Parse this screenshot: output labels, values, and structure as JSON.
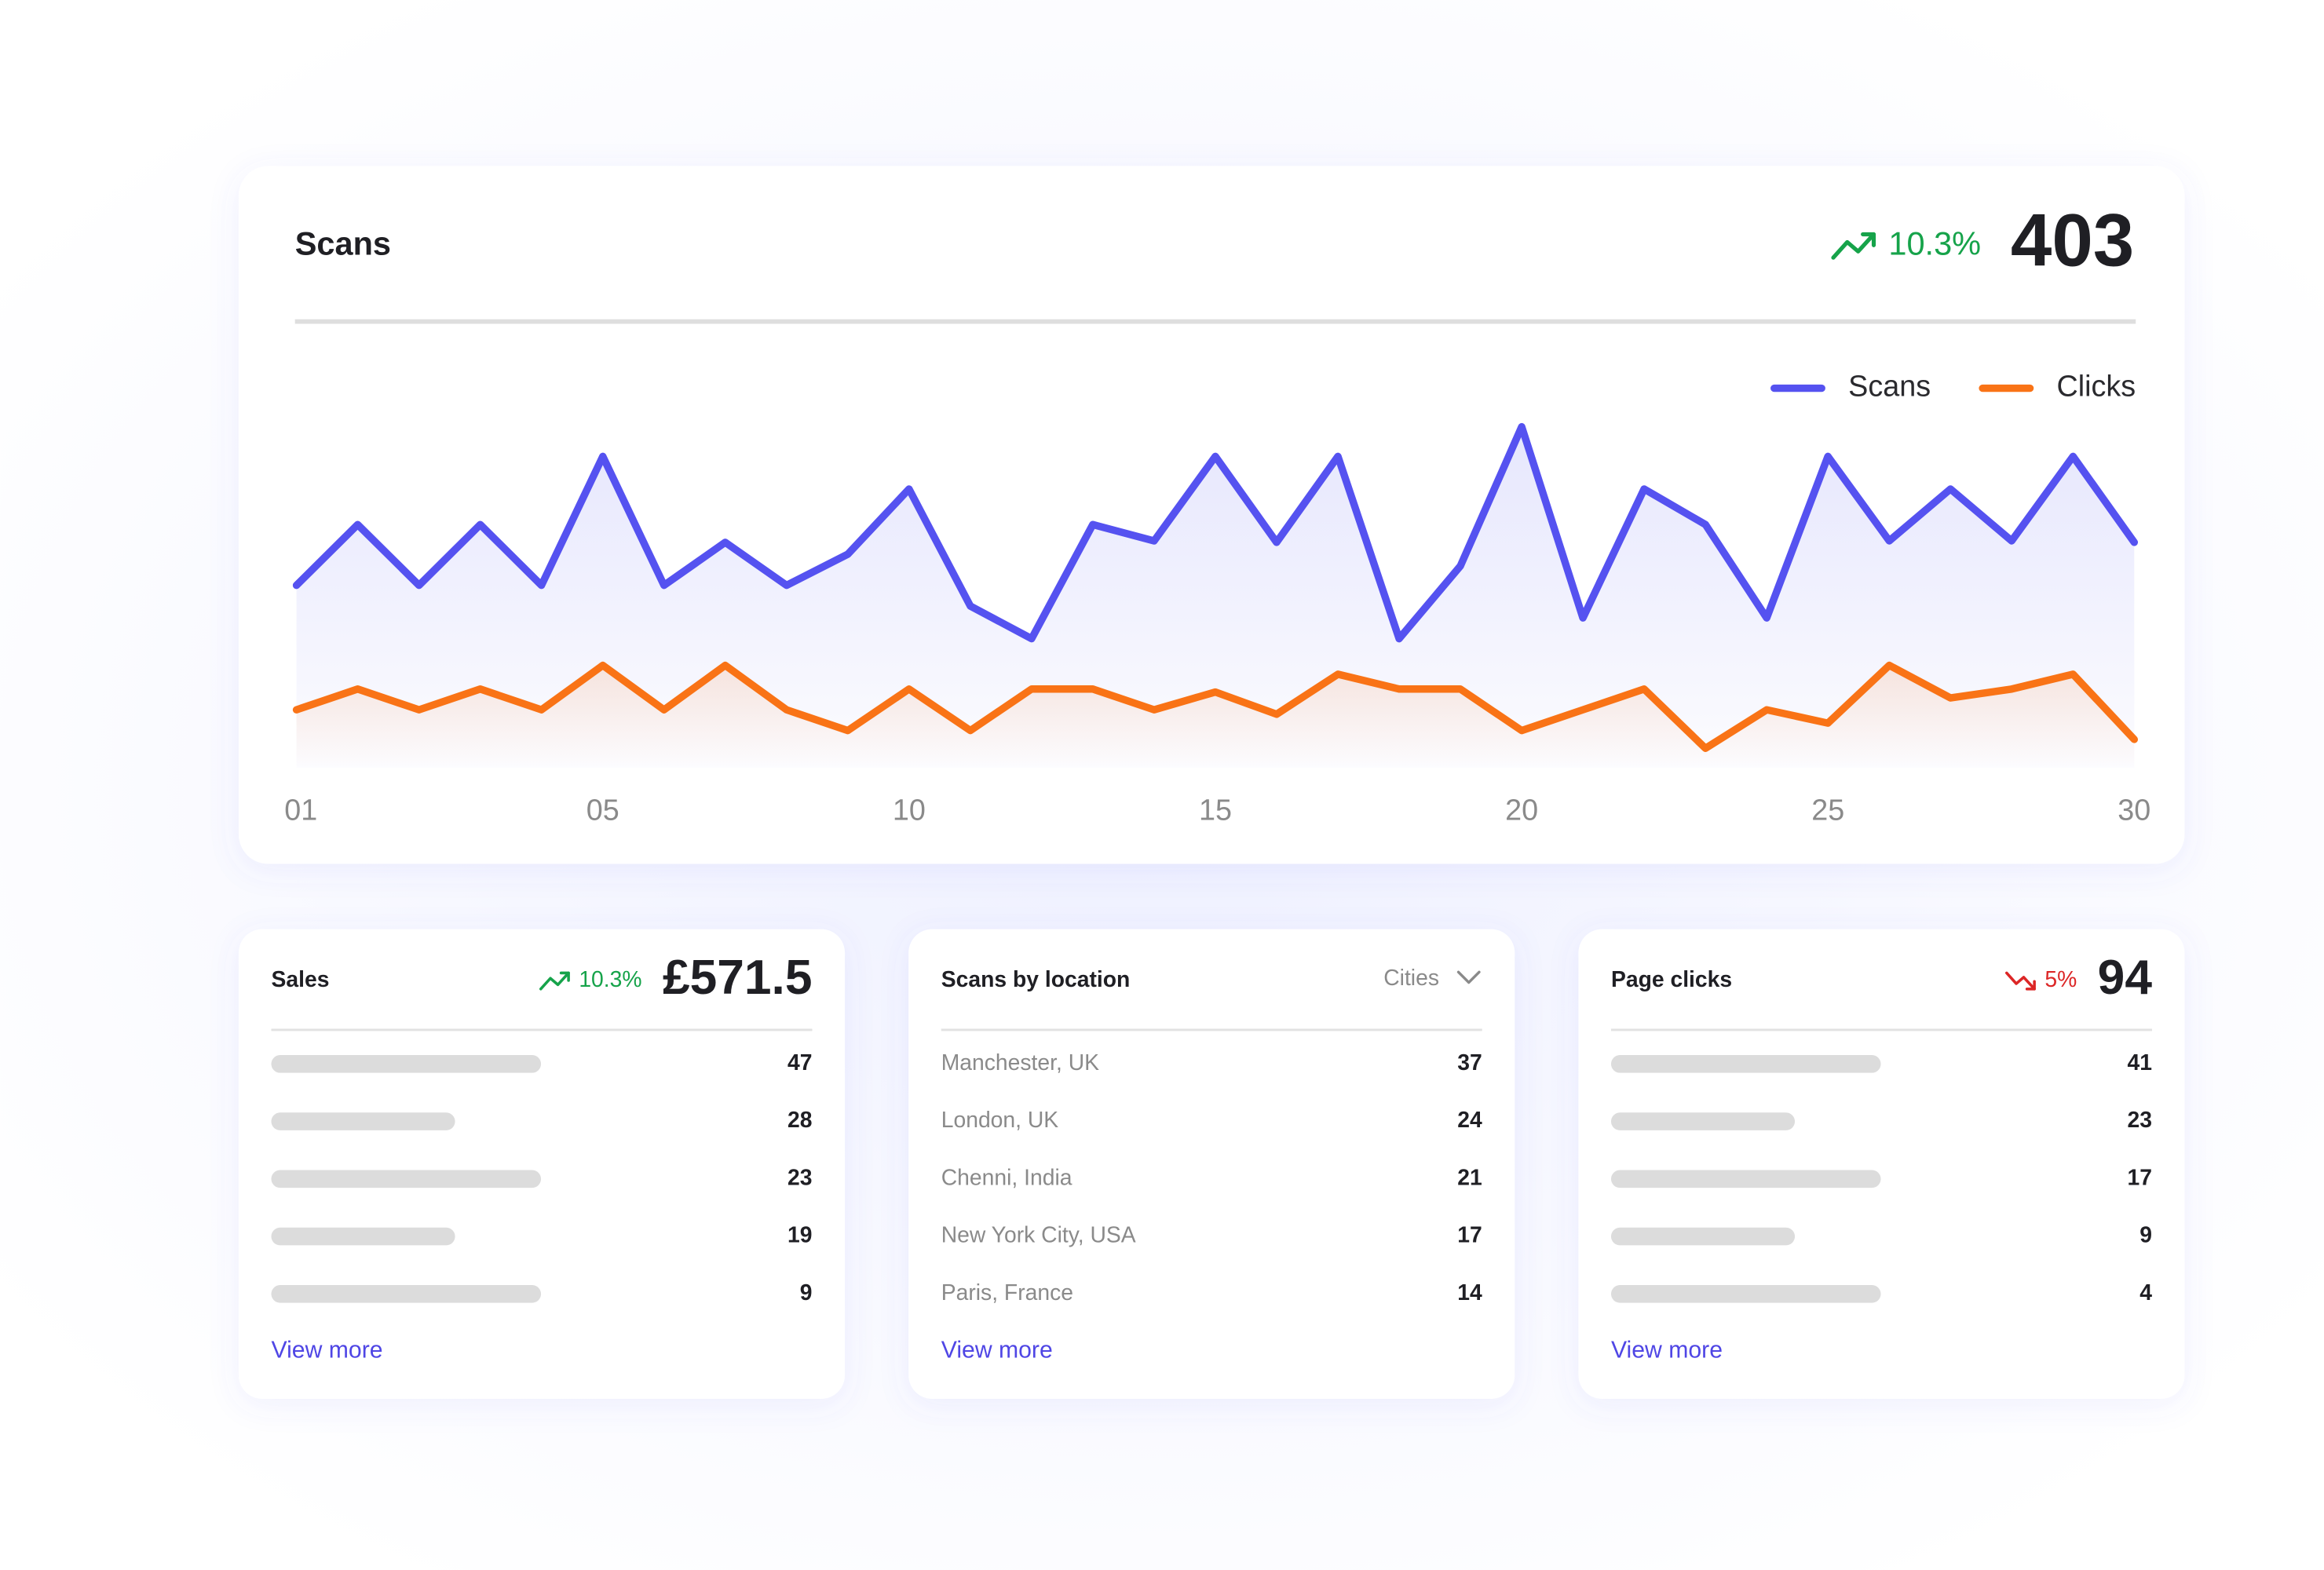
{
  "header": {
    "title": "Scans",
    "change": "10.3%",
    "total": "403"
  },
  "chart_data": {
    "type": "line",
    "categories": [
      "01",
      null,
      null,
      null,
      null,
      "05",
      null,
      null,
      null,
      null,
      "10",
      null,
      null,
      null,
      null,
      "15",
      null,
      null,
      null,
      null,
      "20",
      null,
      null,
      null,
      null,
      "25",
      null,
      null,
      null,
      null,
      "30"
    ],
    "series": [
      {
        "name": "Scans",
        "color": "#5552f0",
        "values": [
          123,
          164,
          123,
          164,
          123,
          210,
          123,
          152,
          123,
          144,
          188,
          109,
          87,
          164,
          153,
          210,
          152,
          210,
          87,
          136,
          230,
          101,
          188,
          164,
          101,
          210,
          153,
          188,
          153,
          210,
          152
        ]
      },
      {
        "name": "Clicks",
        "color": "#f97316",
        "values": [
          39,
          53,
          39,
          53,
          39,
          69,
          39,
          69,
          39,
          25,
          53,
          25,
          53,
          53,
          39,
          51,
          36,
          63,
          53,
          53,
          25,
          39,
          53,
          13,
          39,
          30,
          69,
          47,
          53,
          63,
          19
        ]
      }
    ],
    "ylim": [
      0,
      240
    ],
    "legend": "top-right"
  },
  "cards": [
    {
      "title": "Sales",
      "change": "10.3%",
      "trend": "up",
      "total": "£571.5",
      "rows": [
        {
          "value": 47
        },
        {
          "value": 28
        },
        {
          "value": 23
        },
        {
          "value": 19
        },
        {
          "value": 9
        }
      ],
      "link": "View more"
    },
    {
      "title": "Scans by location",
      "filter": "Cities",
      "rows": [
        {
          "label": "Manchester, UK",
          "value": 37
        },
        {
          "label": "London, UK",
          "value": 24
        },
        {
          "label": "Chenni, India",
          "value": 21
        },
        {
          "label": "New York City, USA",
          "value": 17
        },
        {
          "label": "Paris, France",
          "value": 14
        }
      ],
      "link": "View more"
    },
    {
      "title": "Page clicks",
      "change": "5%",
      "trend": "down",
      "total": "94",
      "rows": [
        {
          "value": 41
        },
        {
          "value": 23
        },
        {
          "value": 17
        },
        {
          "value": 9
        },
        {
          "value": 4
        }
      ],
      "link": "View more"
    }
  ]
}
